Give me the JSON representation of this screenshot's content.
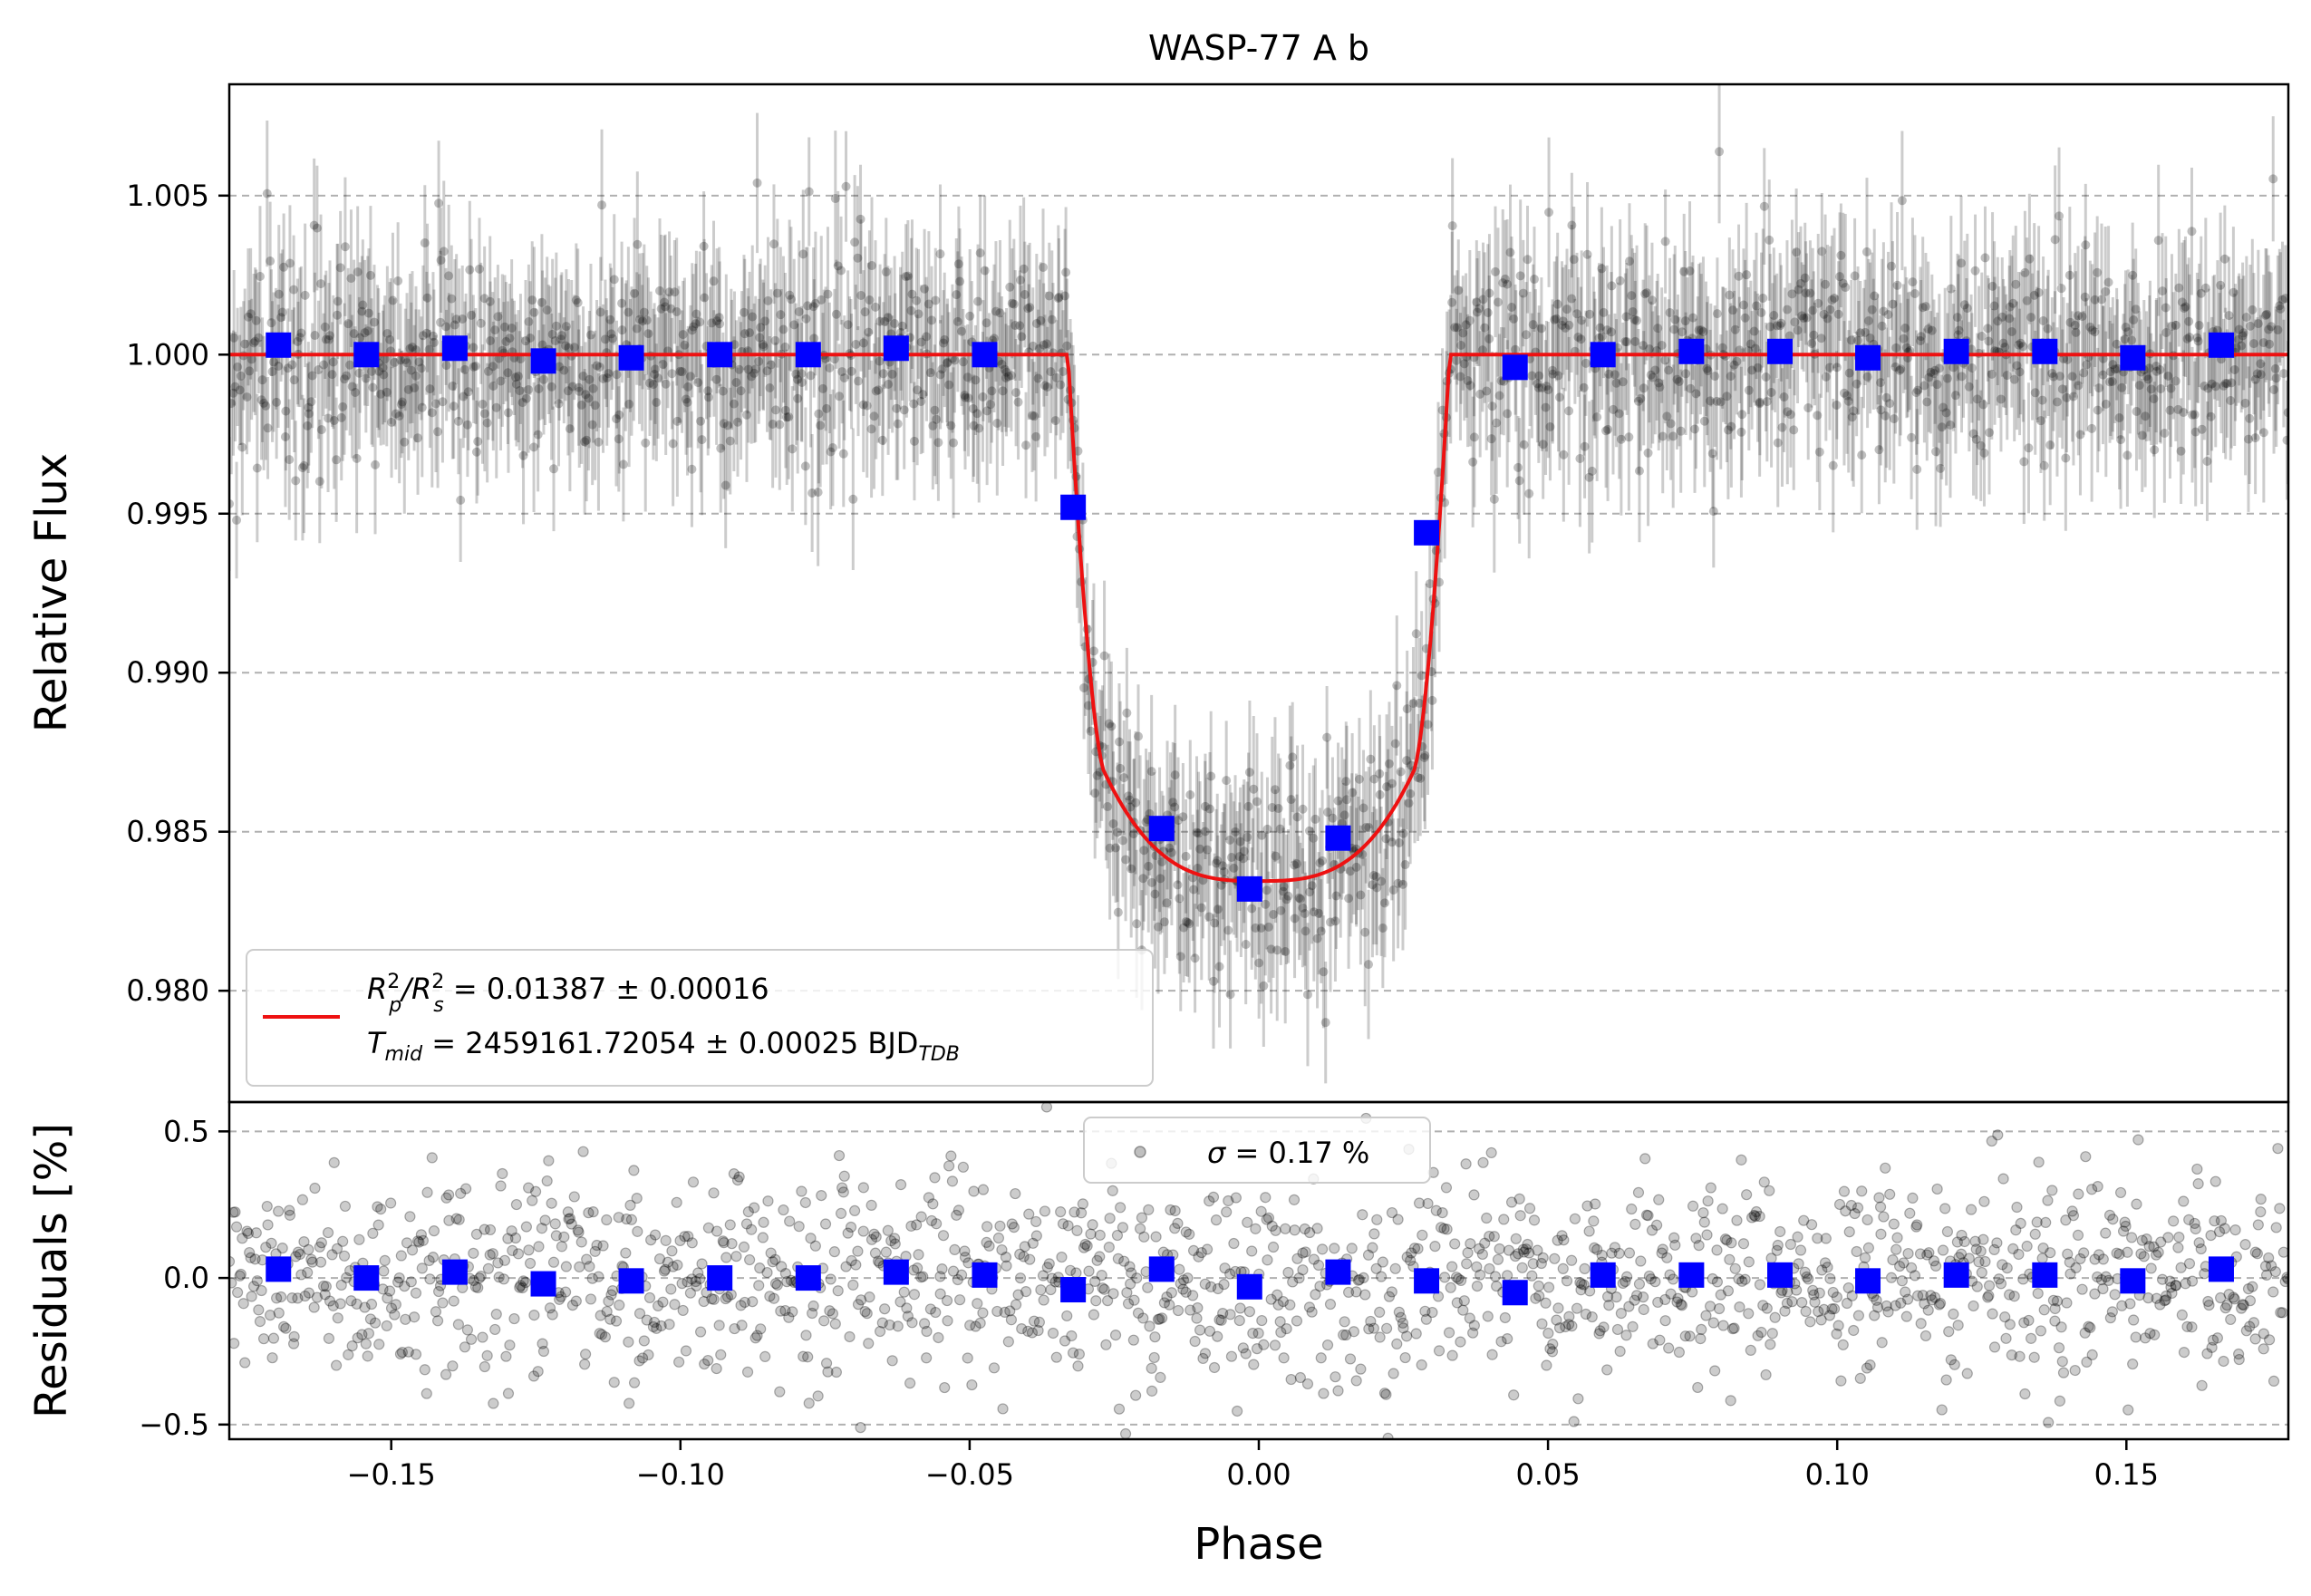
{
  "chart_data": [
    {
      "type": "scatter",
      "panel": "main",
      "title": "WASP-77 A b",
      "ylabel": "Relative Flux",
      "xlim": [
        -0.178,
        0.178
      ],
      "ylim": [
        0.9765,
        1.0085
      ],
      "yticks": [
        0.98,
        0.985,
        0.99,
        0.995,
        1.0,
        1.005
      ],
      "ytick_labels": [
        "0.980",
        "0.985",
        "0.990",
        "0.995",
        "1.000",
        "1.005"
      ],
      "grid": "horizontal dashed",
      "legend": {
        "placement": "lower-left",
        "line1": {
          "lhs_a": "R",
          "sup_a": "2",
          "sub_a": "p",
          "slash": "/R",
          "sup_b": "2",
          "sub_b": "s",
          "rest": " = 0.01387 ± 0.00016"
        },
        "line2": {
          "lhs": "T",
          "sub": "mid",
          "rest": " = 2459161.72054 ± 0.00025 BJD",
          "unit_sub": "TDB"
        }
      },
      "model": {
        "color": "#ee1111",
        "depth": 0.01387,
        "bottom_flux": 0.98345,
        "ingress_start": -0.033,
        "ingress_end": -0.0265,
        "egress_start": 0.0265,
        "egress_end": 0.033
      },
      "raw_points": {
        "count": 1500,
        "scatter_std": 0.0017,
        "color": "#000000"
      },
      "binned_series": {
        "color": "#0000ff",
        "x": [
          -0.1695,
          -0.1543,
          -0.139,
          -0.1237,
          -0.1085,
          -0.0932,
          -0.0779,
          -0.0627,
          -0.0474,
          -0.0321,
          -0.0168,
          -0.0016,
          0.0137,
          0.029,
          0.0443,
          0.0595,
          0.0748,
          0.0901,
          0.1053,
          0.1206,
          0.1359,
          0.1511,
          0.1664
        ],
        "y": [
          1.0003,
          1.0,
          1.0002,
          0.9998,
          0.9999,
          1.0,
          1.0,
          1.0002,
          1.0,
          0.9952,
          0.9851,
          0.9832,
          0.9848,
          0.9944,
          0.9996,
          1.0,
          1.0001,
          1.0001,
          0.9999,
          1.0001,
          1.0001,
          0.9999,
          1.0003
        ]
      }
    },
    {
      "type": "scatter",
      "panel": "residuals",
      "ylabel": "Residuals [%]",
      "xlabel": "Phase",
      "xlim": [
        -0.178,
        0.178
      ],
      "ylim": [
        -0.55,
        0.6
      ],
      "yticks": [
        -0.5,
        0.0,
        0.5
      ],
      "ytick_labels": [
        "−0.5",
        "0.0",
        "0.5"
      ],
      "xticks": [
        -0.15,
        -0.1,
        -0.05,
        0.0,
        0.05,
        0.1,
        0.15
      ],
      "xtick_labels": [
        "−0.15",
        "−0.10",
        "−0.05",
        "0.00",
        "0.05",
        "0.10",
        "0.15"
      ],
      "grid": "horizontal dashed",
      "legend": {
        "placement": "upper-center",
        "sigma_symbol": "σ",
        "text": " = 0.17 %"
      },
      "raw_points": {
        "count": 1500,
        "scatter_std": 0.17
      },
      "binned_series": {
        "color": "#0000ff",
        "x": [
          -0.1695,
          -0.1543,
          -0.139,
          -0.1237,
          -0.1085,
          -0.0932,
          -0.0779,
          -0.0627,
          -0.0474,
          -0.0321,
          -0.0168,
          -0.0016,
          0.0137,
          0.029,
          0.0443,
          0.0595,
          0.0748,
          0.0901,
          0.1053,
          0.1206,
          0.1359,
          0.1511,
          0.1664
        ],
        "y": [
          0.03,
          0.0,
          0.02,
          -0.02,
          -0.01,
          0.0,
          0.0,
          0.02,
          0.01,
          -0.04,
          0.03,
          -0.03,
          0.02,
          -0.01,
          -0.05,
          0.01,
          0.01,
          0.01,
          -0.01,
          0.01,
          0.01,
          -0.01,
          0.03
        ]
      }
    }
  ]
}
